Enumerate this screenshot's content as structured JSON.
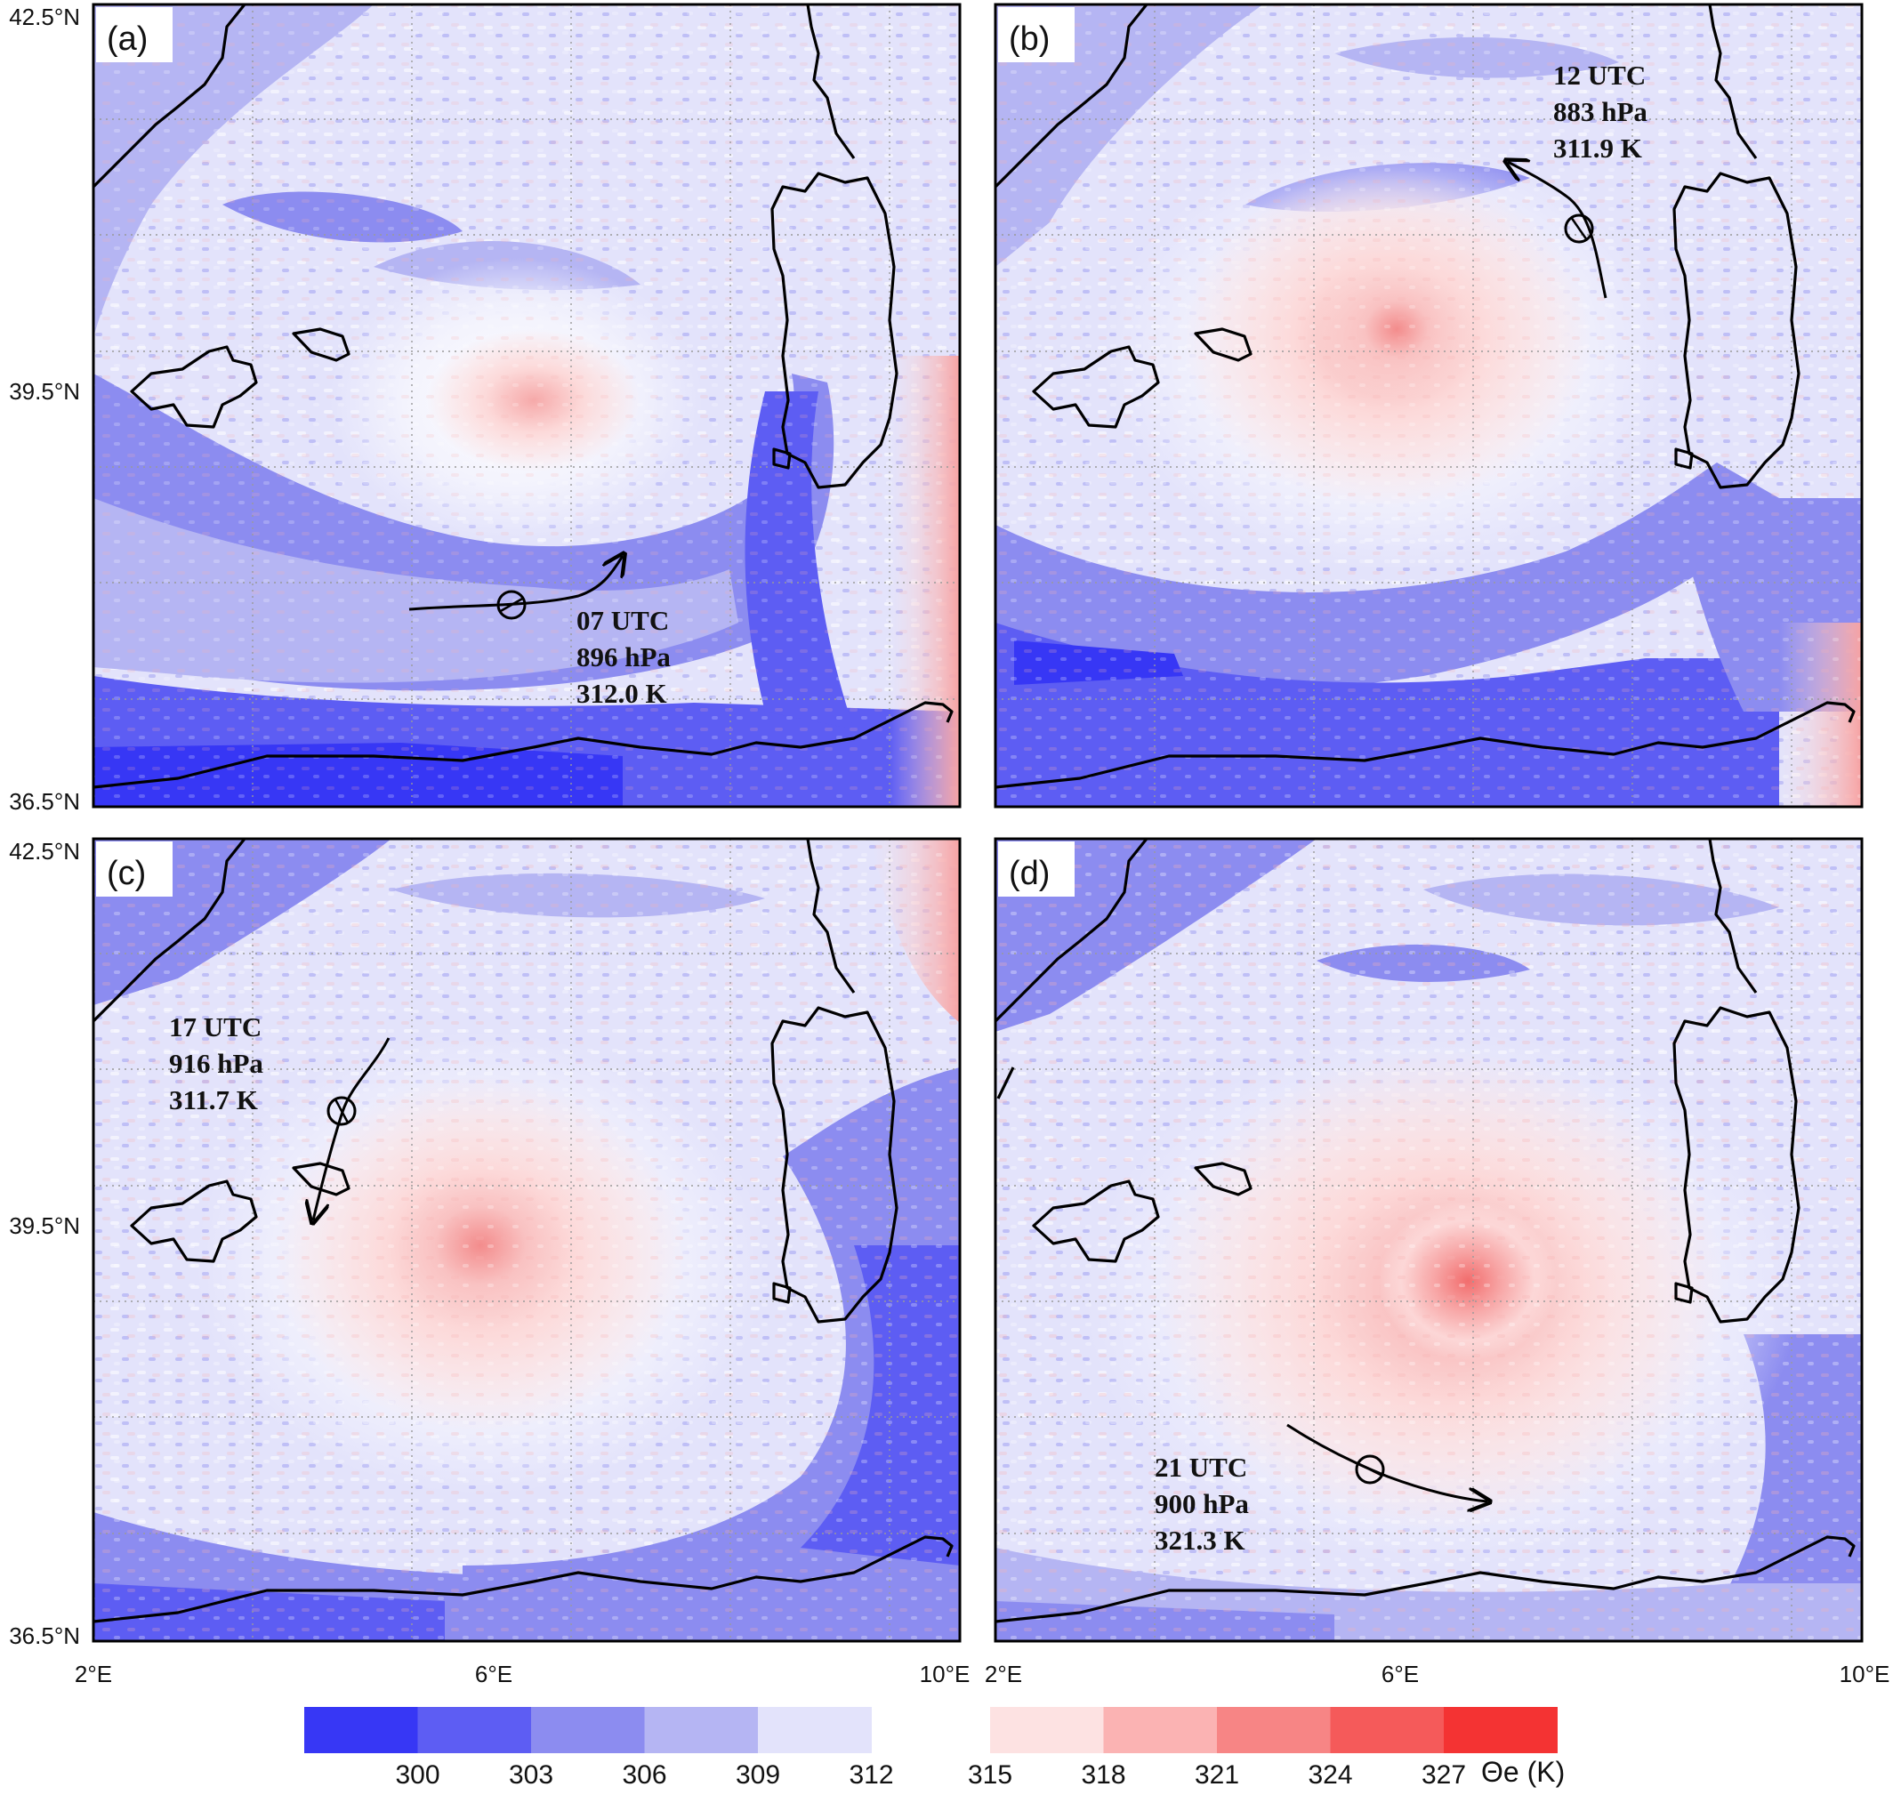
{
  "figure": {
    "lat_labels": [
      "42.5°N",
      "39.5°N",
      "36.5°N"
    ],
    "lon_labels": [
      "2°E",
      "6°E",
      "10°E"
    ],
    "colors": {
      "coast": "#000000",
      "grid": "#9a9a9a"
    }
  },
  "panels": [
    {
      "id": "a",
      "label": "(a)",
      "time": "07 UTC",
      "pressure": "896 hPa",
      "theta": "312.0 K"
    },
    {
      "id": "b",
      "label": "(b)",
      "time": "12 UTC",
      "pressure": "883 hPa",
      "theta": "311.9 K"
    },
    {
      "id": "c",
      "label": "(c)",
      "time": "17 UTC",
      "pressure": "916 hPa",
      "theta": "311.7 K"
    },
    {
      "id": "d",
      "label": "(d)",
      "time": "21 UTC",
      "pressure": "900 hPa",
      "theta": "321.3 K"
    }
  ],
  "colorbar": {
    "unit_label": "Θe (K)",
    "tick_labels": [
      "300",
      "303",
      "306",
      "309",
      "312",
      "315",
      "318",
      "321",
      "324",
      "327"
    ],
    "bins": [
      {
        "color": "#3737f5"
      },
      {
        "color": "#5d5df3"
      },
      {
        "color": "#8c8cf0"
      },
      {
        "color": "#b5b5f3"
      },
      {
        "color": "#e3e3fb"
      },
      {
        "color": "#fde2e2"
      },
      {
        "color": "#fbb3b3"
      },
      {
        "color": "#f78585"
      },
      {
        "color": "#f55a5a"
      },
      {
        "color": "#f43333"
      }
    ]
  }
}
